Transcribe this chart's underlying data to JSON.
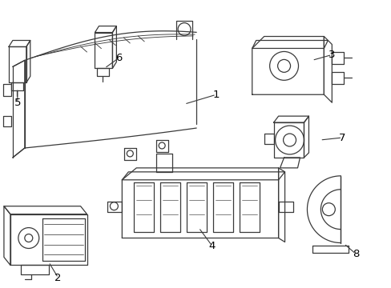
{
  "background_color": "#ffffff",
  "line_color": "#3a3a3a",
  "line_width": 0.9,
  "label_color": "#000000",
  "label_fontsize": 8.5,
  "fig_width": 4.89,
  "fig_height": 3.6,
  "dpi": 100
}
